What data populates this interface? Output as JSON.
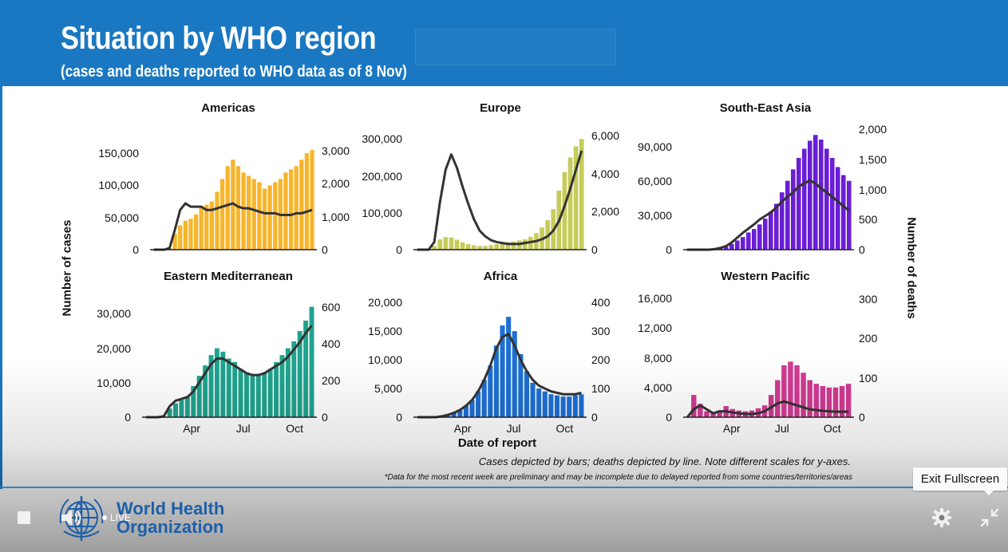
{
  "slide": {
    "title": "Situation by WHO region",
    "subtitle": "(cases and deaths reported to WHO data as of 8 Nov)",
    "y_label_left": "Number of cases",
    "y_label_right": "Number of deaths",
    "x_label": "Date of report",
    "caption": "Cases depicted by bars; deaths depicted by line. Note different scales for y-axes.",
    "footnote": "*Data for the most recent week are preliminary and may be incomplete due to delayed reported from some countries/territories/areas"
  },
  "chart_data": [
    {
      "type": "bar",
      "title": "Americas",
      "bar_color": "#f7b52c",
      "x_ticks": [
        "Apr",
        "Jul",
        "Oct"
      ],
      "cases_ticks": [
        "0",
        "50,000",
        "100,000",
        "150,000"
      ],
      "cases_ylim": [
        0,
        175000
      ],
      "deaths_ticks": [
        "0",
        "1,000",
        "2,000",
        "3,000"
      ],
      "deaths_ylim": [
        0,
        3400
      ],
      "weekly_cases": [
        0,
        0,
        0,
        2000,
        25000,
        38000,
        45000,
        48000,
        55000,
        65000,
        70000,
        75000,
        90000,
        110000,
        130000,
        140000,
        130000,
        120000,
        115000,
        110000,
        105000,
        95000,
        100000,
        105000,
        110000,
        120000,
        125000,
        130000,
        140000,
        150000,
        155000
      ],
      "weekly_deaths": [
        0,
        0,
        0,
        50,
        600,
        1200,
        1400,
        1300,
        1300,
        1300,
        1200,
        1200,
        1250,
        1300,
        1350,
        1400,
        1300,
        1250,
        1250,
        1200,
        1150,
        1100,
        1100,
        1100,
        1050,
        1050,
        1050,
        1100,
        1100,
        1150,
        1200
      ]
    },
    {
      "type": "bar",
      "title": "Europe",
      "bar_color": "#c5cc5a",
      "x_ticks": [
        "Apr",
        "Jul",
        "Oct"
      ],
      "cases_ticks": [
        "0",
        "100,000",
        "200,000",
        "300,000"
      ],
      "cases_ylim": [
        0,
        320000
      ],
      "deaths_ticks": [
        "0",
        "2,000",
        "4,000",
        "6,000"
      ],
      "deaths_ylim": [
        0,
        6200
      ],
      "weekly_cases": [
        0,
        0,
        0,
        10000,
        28000,
        34000,
        33000,
        27000,
        20000,
        15000,
        12000,
        10000,
        10000,
        12000,
        15000,
        18000,
        20000,
        22000,
        25000,
        28000,
        35000,
        45000,
        60000,
        80000,
        110000,
        160000,
        210000,
        250000,
        280000,
        300000
      ],
      "weekly_deaths": [
        0,
        0,
        0,
        400,
        2500,
        4200,
        5000,
        4300,
        3300,
        2400,
        1600,
        1000,
        700,
        500,
        400,
        350,
        300,
        300,
        300,
        350,
        400,
        450,
        550,
        700,
        1000,
        1500,
        2300,
        3200,
        4200,
        5200
      ]
    },
    {
      "type": "bar",
      "title": "South-East Asia",
      "bar_color": "#6a1ed6",
      "x_ticks": [
        "Apr",
        "Jul",
        "Oct"
      ],
      "cases_ticks": [
        "0",
        "30,000",
        "60,000",
        "90,000"
      ],
      "cases_ylim": [
        0,
        105000
      ],
      "deaths_ticks": [
        "0",
        "500",
        "1,000",
        "1,500",
        "2,000"
      ],
      "deaths_ylim": [
        0,
        2000
      ],
      "weekly_cases": [
        0,
        0,
        0,
        0,
        0,
        200,
        1000,
        2500,
        5000,
        8000,
        11000,
        15000,
        18000,
        22000,
        27000,
        33000,
        40000,
        50000,
        60000,
        70000,
        80000,
        88000,
        95000,
        100000,
        96000,
        88000,
        80000,
        72000,
        65000,
        60000
      ],
      "weekly_deaths": [
        0,
        0,
        0,
        0,
        0,
        10,
        30,
        60,
        120,
        200,
        280,
        350,
        420,
        500,
        560,
        620,
        700,
        800,
        880,
        950,
        1050,
        1100,
        1150,
        1100,
        1020,
        950,
        880,
        800,
        720,
        650
      ]
    },
    {
      "type": "bar",
      "title": "Eastern Mediterranean",
      "bar_color": "#1fa38e",
      "x_ticks": [
        "Apr",
        "Jul",
        "Oct"
      ],
      "cases_ticks": [
        "0",
        "10,000",
        "20,000",
        "30,000"
      ],
      "cases_ylim": [
        0,
        34000
      ],
      "deaths_ticks": [
        "0",
        "200",
        "400",
        "600"
      ],
      "deaths_ylim": [
        0,
        640
      ],
      "weekly_cases": [
        0,
        0,
        0,
        200,
        2500,
        4000,
        5000,
        6000,
        9000,
        12000,
        15000,
        18000,
        20000,
        19000,
        17000,
        16000,
        14000,
        13000,
        12000,
        12000,
        13000,
        14000,
        16000,
        18000,
        20000,
        22000,
        25000,
        28000,
        32000
      ],
      "weekly_deaths": [
        0,
        0,
        0,
        5,
        60,
        90,
        100,
        110,
        140,
        190,
        240,
        290,
        320,
        320,
        300,
        280,
        260,
        240,
        230,
        230,
        240,
        260,
        280,
        300,
        330,
        370,
        410,
        460,
        500
      ]
    },
    {
      "type": "bar",
      "title": "Africa",
      "bar_color": "#1d6fd4",
      "x_ticks": [
        "Apr",
        "Jul",
        "Oct"
      ],
      "cases_ticks": [
        "0",
        "5,000",
        "10,000",
        "15,000",
        "20,000"
      ],
      "cases_ylim": [
        0,
        21000
      ],
      "deaths_ticks": [
        "0",
        "100",
        "200",
        "300",
        "400"
      ],
      "deaths_ylim": [
        0,
        420
      ],
      "weekly_cases": [
        0,
        0,
        0,
        0,
        100,
        300,
        700,
        1200,
        2000,
        3000,
        4500,
        6500,
        9000,
        12500,
        16000,
        17500,
        15000,
        11000,
        8000,
        6000,
        5000,
        4500,
        4000,
        3800,
        3600,
        3600,
        3800,
        4000
      ],
      "weekly_deaths": [
        0,
        0,
        0,
        0,
        3,
        8,
        15,
        25,
        40,
        60,
        90,
        130,
        180,
        240,
        280,
        290,
        250,
        200,
        160,
        130,
        110,
        100,
        90,
        85,
        80,
        80,
        80,
        85
      ]
    },
    {
      "type": "bar",
      "title": "Western Pacific",
      "bar_color": "#d13a92",
      "x_ticks": [
        "Apr",
        "Jul",
        "Oct"
      ],
      "cases_ticks": [
        "0",
        "4,000",
        "8,000",
        "12,000",
        "16,000"
      ],
      "cases_ylim": [
        0,
        17000
      ],
      "deaths_ticks": [
        "0",
        "100",
        "200",
        "300"
      ],
      "deaths_ylim": [
        0,
        320
      ],
      "weekly_cases": [
        0,
        3000,
        1800,
        800,
        600,
        900,
        1500,
        1100,
        900,
        800,
        900,
        1200,
        1600,
        3000,
        5000,
        7000,
        7500,
        7000,
        6000,
        5000,
        4500,
        4200,
        4000,
        4000,
        4200,
        4500
      ],
      "weekly_deaths": [
        0,
        20,
        30,
        20,
        10,
        15,
        15,
        12,
        10,
        8,
        8,
        10,
        15,
        25,
        35,
        40,
        35,
        30,
        25,
        20,
        18,
        16,
        15,
        14,
        14,
        14
      ]
    }
  ],
  "player": {
    "logo_line1": "World Health",
    "logo_line2": "Organization",
    "live_label": "LIVE",
    "tooltip": "Exit Fullscreen"
  },
  "colors": {
    "banner": "#1a78c2",
    "deaths_line": "#333333"
  }
}
